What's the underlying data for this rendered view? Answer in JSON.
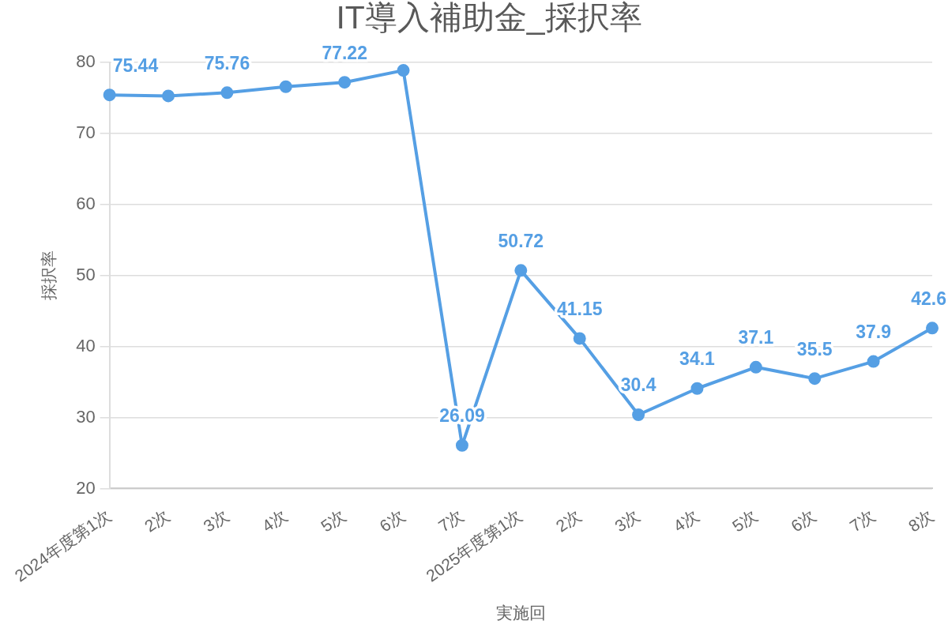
{
  "chart_data": {
    "type": "line",
    "title": "IT導入補助金_採択率",
    "xlabel": "実施回",
    "ylabel": "採択率",
    "categories": [
      "2024年度第1次",
      "2次",
      "3次",
      "4次",
      "5次",
      "6次",
      "7次",
      "2025年度第1次",
      "2次",
      "3次",
      "4次",
      "5次",
      "6次",
      "7次",
      "8次"
    ],
    "values": [
      75.44,
      75.3,
      75.76,
      76.6,
      77.22,
      78.9,
      26.09,
      50.72,
      41.15,
      30.4,
      34.1,
      37.1,
      35.5,
      37.9,
      42.6
    ],
    "value_labels": [
      "75.44",
      null,
      "75.76",
      null,
      "77.22",
      null,
      "26.09",
      "50.72",
      "41.15",
      "30.4",
      "34.1",
      "37.1",
      "35.5",
      "37.9",
      "42.6"
    ],
    "color": "#559fe4",
    "ylim": [
      20,
      80
    ],
    "yticks": [
      20,
      30,
      40,
      50,
      60,
      70,
      80
    ],
    "grid": "y",
    "marker": "circle",
    "line_style": "solid"
  }
}
